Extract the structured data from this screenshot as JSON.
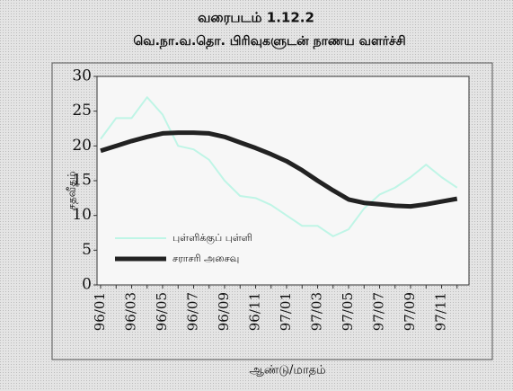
{
  "chart_data": {
    "type": "line",
    "title": "வரைபடம் 1.12.2",
    "subtitle": "வெ.நா.வ.தொ. பிரிவுகளுடன் நாணய வளர்ச்சி",
    "y_label": "சதவீதம்",
    "x_label": "ஆண்டு/மாதம்",
    "categories": [
      "96/01",
      null,
      "96/03",
      null,
      "96/05",
      null,
      "96/07",
      null,
      "96/09",
      null,
      "96/11",
      null,
      "97/01",
      null,
      "97/03",
      null,
      "97/05",
      null,
      "97/07",
      null,
      "97/09",
      null,
      "97/11",
      null
    ],
    "series": [
      {
        "name": "புள்ளிக்குப் புள்ளி",
        "color": "#bff5e6",
        "width": 2,
        "values": [
          21,
          24,
          24,
          27,
          24.5,
          20,
          19.5,
          18,
          15,
          12.8,
          12.5,
          11.5,
          10,
          8.5,
          8.5,
          7,
          8,
          11,
          13,
          14,
          15.5,
          17.3,
          15.5,
          14
        ]
      },
      {
        "name": "சராசரி அசைவு",
        "color": "#222222",
        "width": 5,
        "values": [
          19.3,
          20,
          20.7,
          21.3,
          21.8,
          21.9,
          21.9,
          21.8,
          21.3,
          20.5,
          19.7,
          18.8,
          17.8,
          16.5,
          15,
          13.6,
          12.3,
          11.8,
          11.6,
          11.4,
          11.3,
          11.6,
          12,
          12.4
        ]
      }
    ],
    "ylim": [
      0,
      30
    ],
    "yticks": [
      0,
      5,
      10,
      15,
      20,
      25,
      30
    ],
    "grid": false
  }
}
